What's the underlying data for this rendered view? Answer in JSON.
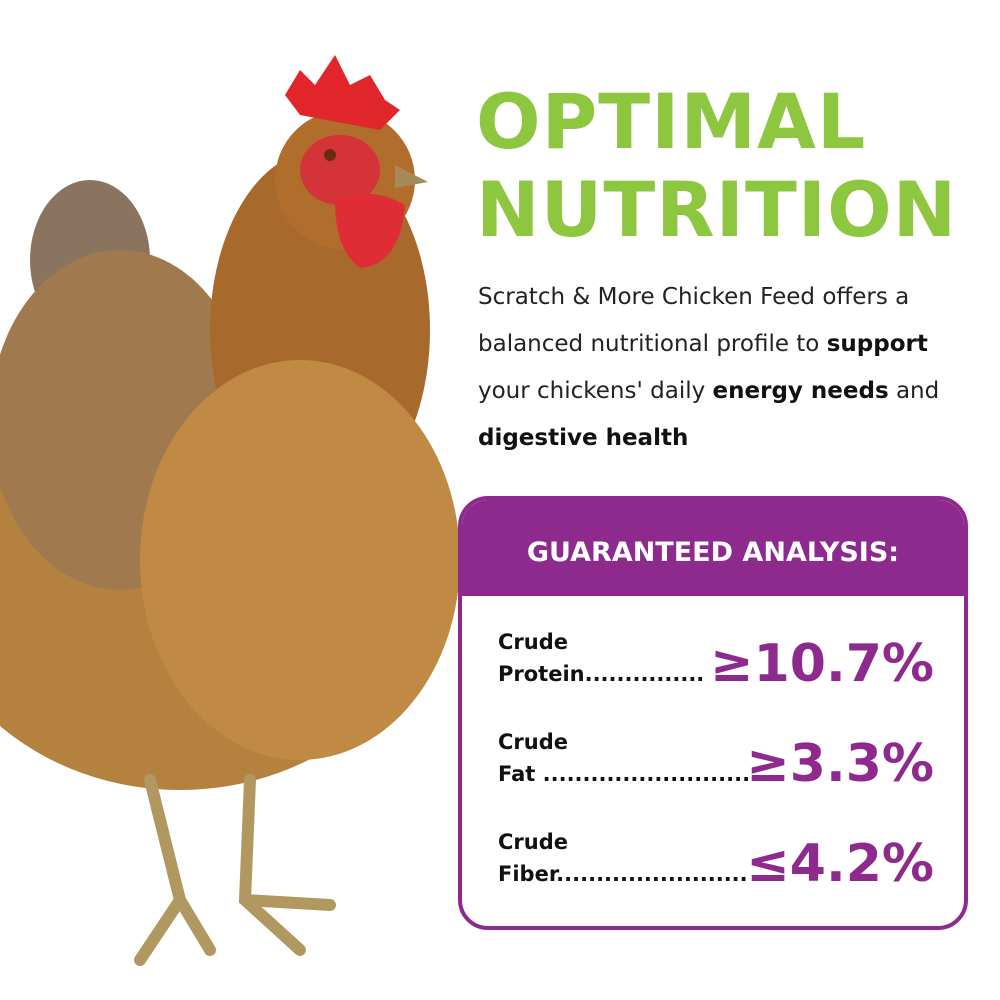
{
  "title": {
    "lines": [
      "OPTIMAL",
      "NUTRITION"
    ]
  },
  "description": {
    "segments": [
      {
        "text": "Scratch & More Chicken Feed offers a balanced nutritional profile to ",
        "bold": false
      },
      {
        "text": "support",
        "bold": true
      },
      {
        "text": " your chickens' daily ",
        "bold": false
      },
      {
        "text": "energy needs",
        "bold": true
      },
      {
        "text": " and ",
        "bold": false
      },
      {
        "text": "digestive health",
        "bold": true
      }
    ]
  },
  "analysis": {
    "heading": "GUARANTEED ANALYSIS:",
    "rows": [
      {
        "label_line1": "Crude",
        "label_line2": "Protein...............",
        "value": "≥10.7%"
      },
      {
        "label_line1": "Crude",
        "label_line2": "Fat ..........................",
        "value": "≥3.3%"
      },
      {
        "label_line1": "Crude",
        "label_line2": "Fiber........................",
        "value": "≤4.2%"
      }
    ]
  }
}
